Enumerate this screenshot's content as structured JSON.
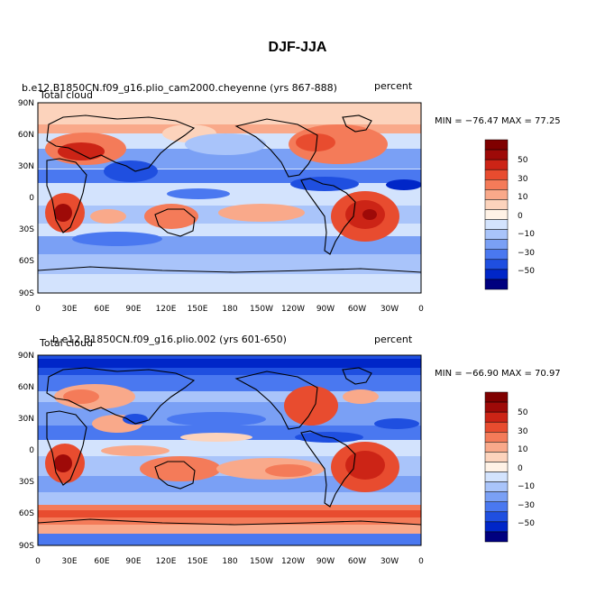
{
  "figure": {
    "title": "DJF-JJA",
    "colors": [
      "#00007f",
      "#0026c8",
      "#1f4fe0",
      "#4a78f0",
      "#7aa0f5",
      "#a9c4fa",
      "#d3e3fd",
      "#fff2e6",
      "#fcd3bc",
      "#f9a98a",
      "#f47b59",
      "#e84c2f",
      "#cc2416",
      "#9e0a08",
      "#7f0000"
    ]
  },
  "panels": [
    {
      "case_label": "b.e12.B1850CN.f09_g16.plio_cam2000.cheyenne (yrs 867-888)",
      "variable_label": "Total cloud",
      "units_label": "percent",
      "stats": "MIN = −76.47 MAX =  77.25"
    },
    {
      "case_label": "b.e12.B1850CN.f09_g16.plio.002 (yrs 601-650)",
      "variable_label": "Total cloud",
      "units_label": "percent",
      "stats": "MIN = −66.90 MAX =  70.97"
    }
  ],
  "axes": {
    "lat_ticks": [
      "90N",
      "60N",
      "30N",
      "0",
      "30S",
      "60S",
      "90S"
    ],
    "lon_ticks": [
      "0",
      "30E",
      "60E",
      "90E",
      "120E",
      "150E",
      "180",
      "150W",
      "120W",
      "90W",
      "60W",
      "30W",
      "0"
    ]
  },
  "colorbar": {
    "labels": [
      "50",
      "30",
      "10",
      "0",
      "−10",
      "−30",
      "−50"
    ]
  }
}
